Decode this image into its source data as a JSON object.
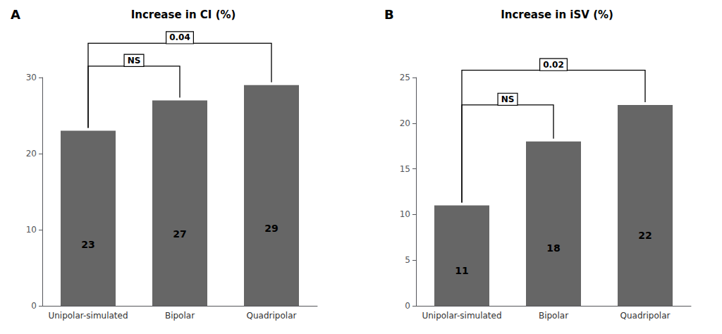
{
  "chart_data": [
    {
      "type": "bar",
      "title": "Increase in CI (%)",
      "panel_label": "A",
      "categories": [
        "Unipolar-simulated",
        "Bipolar",
        "Quadripolar"
      ],
      "values": [
        23,
        27,
        29
      ],
      "color": "#666666",
      "ylim": [
        0,
        30
      ],
      "yticks": [
        0,
        10,
        20,
        30
      ],
      "grid": false,
      "data_labels": true,
      "annotations": [
        {
          "text": "NS",
          "from": "Unipolar-simulated",
          "to": "Bipolar",
          "y": 31.5
        },
        {
          "text": "0.04",
          "from": "Unipolar-simulated",
          "to": "Quadripolar",
          "y": 34.5
        }
      ]
    },
    {
      "type": "bar",
      "title": "Increase in iSV (%)",
      "panel_label": "B",
      "categories": [
        "Unipolar-simulated",
        "Bipolar",
        "Quadripolar"
      ],
      "values": [
        11,
        18,
        22
      ],
      "color": "#666666",
      "ylim": [
        0,
        25
      ],
      "yticks": [
        0,
        5,
        10,
        15,
        20,
        25
      ],
      "grid": false,
      "data_labels": true,
      "annotations": [
        {
          "text": "NS",
          "from": "Unipolar-simulated",
          "to": "Bipolar",
          "y": 22.0
        },
        {
          "text": "0.02",
          "from": "Unipolar-simulated",
          "to": "Quadripolar",
          "y": 25.8
        }
      ]
    }
  ]
}
